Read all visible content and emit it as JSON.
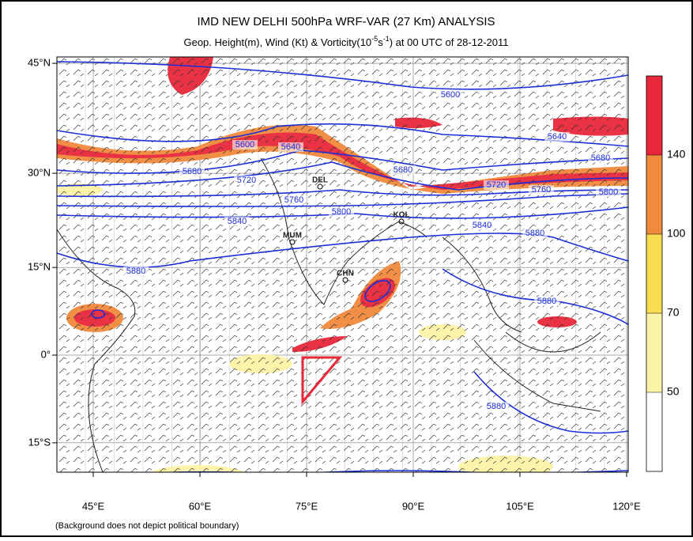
{
  "header": {
    "title": "IMD NEW DELHI 500hPa WRF-VAR (27 Km) ANALYSIS",
    "subtitle": [
      "Geop. Height(m), Wind (Kt) & Vorticity(10",
      "-5",
      "s",
      "-1",
      ") at 00 UTC of 28-12-2011"
    ]
  },
  "map": {
    "lat_ticks": [
      {
        "value": 45,
        "label": "45°N"
      },
      {
        "value": 30,
        "label": "30°N"
      },
      {
        "value": 15,
        "label": "15°N"
      },
      {
        "value": 0,
        "label": "0°"
      },
      {
        "value": -15,
        "label": "15°S"
      }
    ],
    "lon_ticks": [
      {
        "value": 45,
        "label": "45°E"
      },
      {
        "value": 60,
        "label": "60°E"
      },
      {
        "value": 75,
        "label": "75°E"
      },
      {
        "value": 90,
        "label": "90°E"
      },
      {
        "value": 105,
        "label": "105°E"
      },
      {
        "value": 120,
        "label": "120°E"
      }
    ],
    "contour_labels": [
      5600,
      5600,
      5640,
      5640,
      5680,
      5680,
      5680,
      5720,
      5720,
      5760,
      5760,
      5800,
      5800,
      5840,
      5840,
      5880,
      5880,
      5880,
      5880
    ],
    "stations": [
      "DEL",
      "MUM",
      "KOL",
      "CHN"
    ]
  },
  "colorbar": {
    "levels": [
      50,
      70,
      100,
      140
    ],
    "colors": [
      "#ffffff",
      "#fdf3a6",
      "#f9dc52",
      "#f08a3c",
      "#e8283a"
    ]
  },
  "footnote": "(Background does not depict political boundary)"
}
